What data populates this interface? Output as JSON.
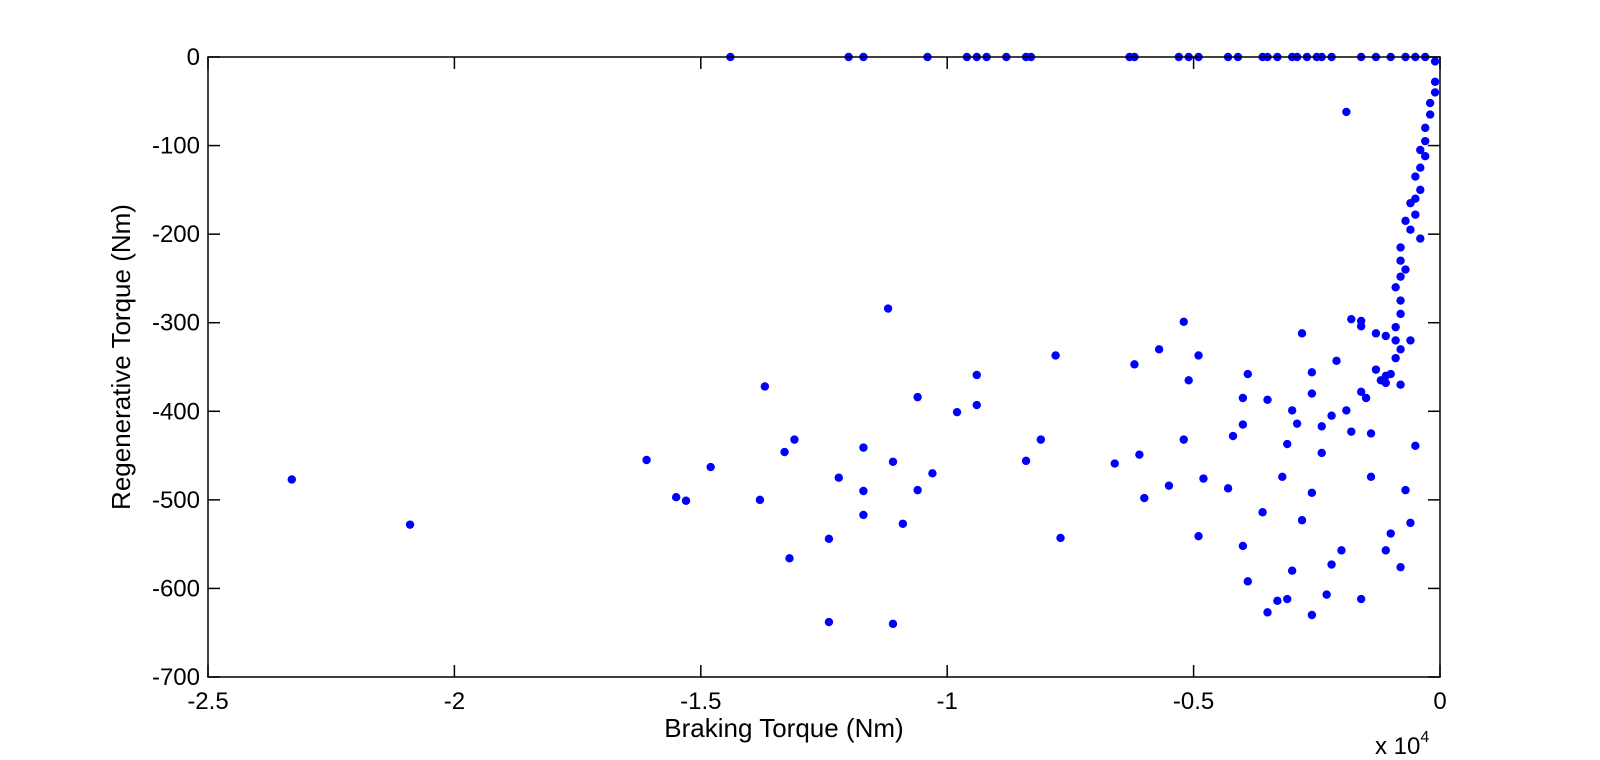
{
  "chart_data": {
    "type": "scatter",
    "title": "",
    "xlabel": "Braking Torque (Nm)",
    "ylabel": "Regenerative Torque (Nm)",
    "x_multiplier_label": "x 10",
    "x_multiplier_exponent": "4",
    "xlim": [
      -2.5,
      0
    ],
    "ylim": [
      -700,
      0
    ],
    "x_ticks": [
      -2.5,
      -2,
      -1.5,
      -1,
      -0.5,
      0
    ],
    "x_tick_labels": [
      "-2.5",
      "-2",
      "-1.5",
      "-1",
      "-0.5",
      "0"
    ],
    "y_ticks": [
      0,
      -100,
      -200,
      -300,
      -400,
      -500,
      -600,
      -700
    ],
    "y_tick_labels": [
      "0",
      "-100",
      "-200",
      "-300",
      "-400",
      "-500",
      "-600",
      "-700"
    ],
    "grid": false,
    "marker_color": "#0000ff",
    "series": [
      {
        "points": [
          [
            -1.44,
            0
          ],
          [
            -1.2,
            0
          ],
          [
            -1.17,
            0
          ],
          [
            -1.04,
            0
          ],
          [
            -0.96,
            0
          ],
          [
            -0.94,
            0
          ],
          [
            -0.92,
            0
          ],
          [
            -0.88,
            0
          ],
          [
            -0.84,
            0
          ],
          [
            -0.83,
            0
          ],
          [
            -0.63,
            0
          ],
          [
            -0.62,
            0
          ],
          [
            -0.53,
            0
          ],
          [
            -0.51,
            0
          ],
          [
            -0.49,
            0
          ],
          [
            -0.43,
            0
          ],
          [
            -0.41,
            0
          ],
          [
            -0.36,
            0
          ],
          [
            -0.35,
            0
          ],
          [
            -0.33,
            0
          ],
          [
            -0.3,
            0
          ],
          [
            -0.29,
            0
          ],
          [
            -0.27,
            0
          ],
          [
            -0.25,
            0
          ],
          [
            -0.24,
            0
          ],
          [
            -0.22,
            0
          ],
          [
            -0.16,
            0
          ],
          [
            -0.13,
            0
          ],
          [
            -0.1,
            0
          ],
          [
            -0.07,
            0
          ],
          [
            -0.05,
            0
          ],
          [
            -0.03,
            0
          ],
          [
            -0.19,
            -62
          ],
          [
            -0.01,
            -5
          ],
          [
            -0.01,
            -28
          ],
          [
            -0.01,
            -40
          ],
          [
            -0.02,
            -52
          ],
          [
            -0.02,
            -65
          ],
          [
            -0.03,
            -80
          ],
          [
            -0.03,
            -95
          ],
          [
            -0.04,
            -105
          ],
          [
            -0.03,
            -112
          ],
          [
            -0.04,
            -125
          ],
          [
            -0.05,
            -135
          ],
          [
            -0.04,
            -150
          ],
          [
            -0.05,
            -160
          ],
          [
            -0.06,
            -165
          ],
          [
            -0.05,
            -178
          ],
          [
            -0.07,
            -185
          ],
          [
            -0.06,
            -195
          ],
          [
            -0.04,
            -205
          ],
          [
            -0.08,
            -215
          ],
          [
            -0.08,
            -230
          ],
          [
            -0.07,
            -240
          ],
          [
            -0.08,
            -248
          ],
          [
            -0.09,
            -260
          ],
          [
            -0.08,
            -275
          ],
          [
            -0.08,
            -290
          ],
          [
            -0.09,
            -305
          ],
          [
            -0.11,
            -315
          ],
          [
            -0.06,
            -320
          ],
          [
            -0.08,
            -330
          ],
          [
            -1.12,
            -284
          ],
          [
            -0.52,
            -299
          ],
          [
            -0.28,
            -312
          ],
          [
            -0.18,
            -296
          ],
          [
            -0.16,
            -298
          ],
          [
            -0.16,
            -304
          ],
          [
            -0.13,
            -312
          ],
          [
            -0.09,
            -320
          ],
          [
            -0.08,
            -370
          ],
          [
            -0.1,
            -358
          ],
          [
            -0.12,
            -365
          ],
          [
            -0.11,
            -360
          ],
          [
            -0.09,
            -340
          ],
          [
            -0.62,
            -347
          ],
          [
            -0.57,
            -330
          ],
          [
            -0.49,
            -337
          ],
          [
            -0.78,
            -337
          ],
          [
            -0.94,
            -359
          ],
          [
            -0.51,
            -365
          ],
          [
            -0.39,
            -358
          ],
          [
            -0.26,
            -356
          ],
          [
            -0.21,
            -343
          ],
          [
            -0.13,
            -353
          ],
          [
            -0.16,
            -378
          ],
          [
            -1.37,
            -372
          ],
          [
            -1.06,
            -384
          ],
          [
            -0.4,
            -385
          ],
          [
            -0.26,
            -380
          ],
          [
            -0.15,
            -385
          ],
          [
            -0.11,
            -368
          ],
          [
            -0.98,
            -401
          ],
          [
            -0.94,
            -393
          ],
          [
            -0.35,
            -387
          ],
          [
            -0.3,
            -399
          ],
          [
            -0.19,
            -399
          ],
          [
            -0.22,
            -405
          ],
          [
            -0.4,
            -415
          ],
          [
            -0.29,
            -414
          ],
          [
            -0.24,
            -417
          ],
          [
            -0.14,
            -425
          ],
          [
            -0.18,
            -423
          ],
          [
            -0.42,
            -428
          ],
          [
            -0.81,
            -432
          ],
          [
            -0.52,
            -432
          ],
          [
            -1.31,
            -432
          ],
          [
            -1.33,
            -446
          ],
          [
            -1.17,
            -441
          ],
          [
            -0.31,
            -437
          ],
          [
            -0.05,
            -439
          ],
          [
            -1.61,
            -455
          ],
          [
            -1.11,
            -457
          ],
          [
            -0.84,
            -456
          ],
          [
            -0.66,
            -459
          ],
          [
            -0.61,
            -449
          ],
          [
            -0.24,
            -447
          ],
          [
            -1.48,
            -463
          ],
          [
            -1.03,
            -470
          ],
          [
            -1.22,
            -475
          ],
          [
            -0.48,
            -476
          ],
          [
            -0.32,
            -474
          ],
          [
            -0.14,
            -474
          ],
          [
            -2.33,
            -477
          ],
          [
            -1.06,
            -489
          ],
          [
            -1.17,
            -490
          ],
          [
            -0.55,
            -484
          ],
          [
            -0.43,
            -487
          ],
          [
            -0.26,
            -492
          ],
          [
            -0.07,
            -489
          ],
          [
            -1.55,
            -497
          ],
          [
            -1.53,
            -501
          ],
          [
            -1.38,
            -500
          ],
          [
            -0.6,
            -498
          ],
          [
            -2.09,
            -528
          ],
          [
            -1.17,
            -517
          ],
          [
            -1.09,
            -527
          ],
          [
            -0.36,
            -514
          ],
          [
            -0.28,
            -523
          ],
          [
            -0.06,
            -526
          ],
          [
            -1.24,
            -544
          ],
          [
            -0.77,
            -543
          ],
          [
            -0.49,
            -541
          ],
          [
            -0.1,
            -538
          ],
          [
            -1.32,
            -566
          ],
          [
            -0.4,
            -552
          ],
          [
            -0.2,
            -557
          ],
          [
            -0.11,
            -557
          ],
          [
            -0.08,
            -576
          ],
          [
            -0.22,
            -573
          ],
          [
            -0.39,
            -592
          ],
          [
            -0.3,
            -580
          ],
          [
            -0.33,
            -614
          ],
          [
            -0.31,
            -612
          ],
          [
            -0.23,
            -607
          ],
          [
            -0.16,
            -612
          ],
          [
            -0.35,
            -627
          ],
          [
            -0.26,
            -630
          ],
          [
            -1.24,
            -638
          ],
          [
            -1.11,
            -640
          ]
        ]
      }
    ]
  }
}
